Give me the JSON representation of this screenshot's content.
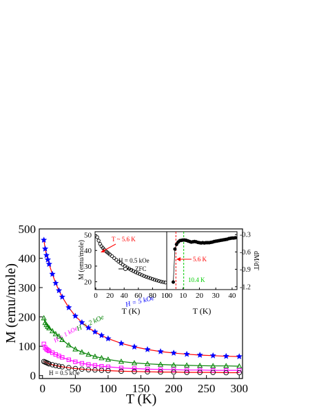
{
  "chart_data": [
    {
      "type": "scatter",
      "role": "main",
      "xlabel": "T (K)",
      "ylabel": "M (emu/mole)",
      "xlim": [
        -5,
        305
      ],
      "ylim": [
        -10,
        500
      ],
      "xticks": [
        0,
        50,
        100,
        150,
        200,
        250,
        300
      ],
      "yticks": [
        0,
        100,
        200,
        300,
        400,
        500
      ],
      "grid": false,
      "series": [
        {
          "label": "H = 5 kOe",
          "color": "#0000ff",
          "line_color": "#ff0000",
          "marker": "star",
          "x": [
            2,
            4,
            6,
            8,
            10,
            15,
            20,
            25,
            30,
            40,
            50,
            60,
            70,
            80,
            90,
            100,
            120,
            140,
            160,
            180,
            200,
            220,
            240,
            260,
            280,
            300
          ],
          "y": [
            462,
            432,
            410,
            395,
            380,
            346,
            315,
            290,
            268,
            232,
            203,
            181,
            163,
            149,
            137,
            126,
            110,
            98,
            89,
            82,
            77,
            73,
            70,
            68,
            66,
            65
          ]
        },
        {
          "label": "H = 2 kOe",
          "color": "#008000",
          "line_color": "#008000",
          "marker": "triangle-open",
          "x": [
            2,
            4,
            6,
            8,
            10,
            15,
            20,
            25,
            30,
            40,
            50,
            60,
            70,
            80,
            90,
            100,
            120,
            140,
            160,
            180,
            200,
            220,
            240,
            260,
            280,
            300
          ],
          "y": [
            196,
            180,
            173,
            167,
            162,
            152,
            142,
            134,
            122,
            104,
            90,
            80,
            72,
            65,
            60,
            55,
            48,
            43,
            40,
            38,
            36,
            35,
            34,
            33,
            33,
            32
          ]
        },
        {
          "label": "H = 1 kOe",
          "color": "#ff00ff",
          "line_color": "#ff00ff",
          "marker": "square-open",
          "x": [
            2,
            4,
            6,
            8,
            10,
            15,
            20,
            25,
            30,
            40,
            50,
            60,
            70,
            80,
            90,
            100,
            120,
            140,
            160,
            180,
            200,
            220,
            240,
            260,
            280,
            300
          ],
          "y": [
            108,
            95,
            90,
            87,
            84,
            78,
            72,
            67,
            62,
            54,
            47,
            42,
            38,
            35,
            32,
            30,
            26,
            24,
            22,
            21,
            20,
            19,
            19,
            18,
            18,
            18
          ]
        },
        {
          "label": "H = 0.5 kOe",
          "color": "#000000",
          "line_color": "#ff0000",
          "marker": "circle-open",
          "x": [
            2,
            4,
            6,
            8,
            10,
            15,
            20,
            25,
            30,
            40,
            50,
            60,
            70,
            80,
            90,
            100,
            120,
            140,
            160,
            180,
            200,
            220,
            240,
            260,
            280,
            300
          ],
          "y": [
            48,
            46,
            44,
            42,
            40,
            37,
            34,
            32,
            30,
            27,
            24,
            22,
            20,
            19,
            18,
            17,
            15,
            14,
            13,
            12,
            12,
            11,
            11,
            11,
            10,
            10
          ]
        }
      ]
    },
    {
      "type": "scatter",
      "role": "inset-left",
      "xlabel": "T (K)",
      "ylabel": "M (emu/mole)",
      "xlim": [
        -1,
        100
      ],
      "ylim": [
        15,
        52
      ],
      "xticks": [
        0,
        20,
        40,
        60,
        80,
        100
      ],
      "yticks": [
        20,
        30,
        40,
        50
      ],
      "legend": {
        "title": "H = 0.5 kOe",
        "entries": [
          "ZFC"
        ]
      },
      "annotations": [
        {
          "text": "T ~ 5.6 K",
          "color": "#ff0000"
        }
      ],
      "series": [
        {
          "label": "ZFC",
          "color": "#000000",
          "marker": "circle-open",
          "x": [
            2,
            4,
            6,
            8,
            10,
            12,
            14,
            16,
            18,
            20,
            23,
            26,
            29,
            32,
            35,
            38,
            41,
            44,
            47,
            50,
            53,
            56,
            59,
            62,
            65,
            68,
            71,
            74,
            77,
            80,
            83,
            86,
            89,
            92,
            95,
            98
          ],
          "y": [
            48.5,
            46.3,
            44.2,
            42.7,
            41.6,
            40.6,
            39.6,
            38.9,
            38.1,
            37.4,
            36.3,
            35.1,
            34.0,
            32.9,
            31.9,
            30.9,
            30.0,
            29.1,
            28.3,
            27.5,
            26.8,
            26.1,
            25.5,
            24.9,
            24.3,
            23.7,
            23.2,
            22.7,
            22.2,
            21.8,
            21.3,
            20.9,
            20.5,
            20.1,
            19.8,
            19.5
          ]
        }
      ]
    },
    {
      "type": "scatter",
      "role": "inset-right",
      "xlabel": "T (K)",
      "ylabel": "dM/dT",
      "xlim": [
        0,
        43
      ],
      "ylim": [
        -1.25,
        -0.25
      ],
      "xticks": [
        0,
        10,
        20,
        30,
        40
      ],
      "yticks": [
        -0.3,
        -0.6,
        -0.9,
        -1.2
      ],
      "vlines": [
        {
          "x": 5.6,
          "label": "5.6 K",
          "color": "#ff0000"
        },
        {
          "x": 10.4,
          "label": "10.4 K",
          "color": "#00cc00"
        }
      ],
      "series": [
        {
          "color": "#000000",
          "marker": "circle-filled",
          "x": [
            4,
            5,
            6,
            7,
            8,
            9,
            10,
            11,
            12,
            13,
            14,
            15,
            16,
            17,
            18,
            19,
            20,
            21,
            22,
            23,
            24,
            25,
            26,
            27,
            28,
            29,
            30,
            31,
            32,
            33,
            34,
            35,
            36,
            37,
            38,
            39,
            40,
            41,
            42
          ],
          "y": [
            -1.12,
            -0.55,
            -0.47,
            -0.43,
            -0.405,
            -0.4,
            -0.395,
            -0.395,
            -0.4,
            -0.41,
            -0.42,
            -0.43,
            -0.425,
            -0.42,
            -0.425,
            -0.435,
            -0.44,
            -0.445,
            -0.44,
            -0.445,
            -0.44,
            -0.44,
            -0.44,
            -0.435,
            -0.43,
            -0.42,
            -0.415,
            -0.41,
            -0.405,
            -0.4,
            -0.395,
            -0.39,
            -0.385,
            -0.38,
            -0.37,
            -0.365,
            -0.36,
            -0.36,
            -0.355
          ]
        }
      ]
    }
  ]
}
